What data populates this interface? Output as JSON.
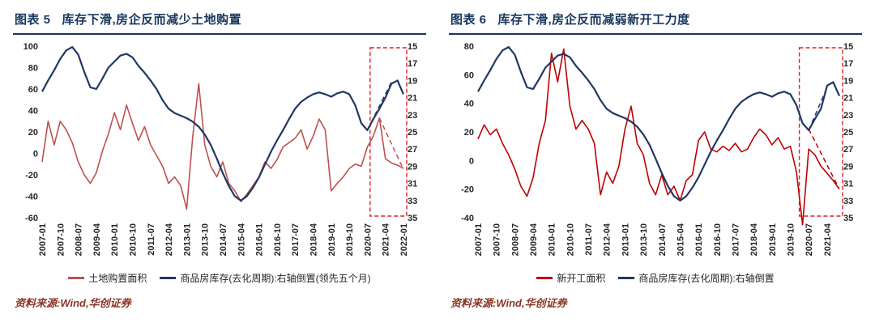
{
  "panels": [
    {
      "title_prefix": "图表 5",
      "title": "库存下滑,房企反而减少土地购置",
      "source": "资料来源:Wind,华创证券"
    },
    {
      "title_prefix": "图表 6",
      "title": "库存下滑,房企反而减弱新开工力度",
      "source": "资料来源:Wind,华创证券"
    }
  ],
  "colors": {
    "title_navy": "#17375e",
    "blue_series": "#1f3864",
    "red_series_muted": "#c0504d",
    "red_series_bright": "#c00000",
    "highlight_red": "#e01f1f",
    "source_maroon": "#8b3626"
  },
  "chart_data": [
    {
      "type": "line",
      "x": [
        "2007-01",
        "2007-04",
        "2007-07",
        "2007-10",
        "2008-01",
        "2008-04",
        "2008-07",
        "2008-10",
        "2009-01",
        "2009-04",
        "2009-07",
        "2009-10",
        "2010-01",
        "2010-04",
        "2010-07",
        "2010-10",
        "2011-01",
        "2011-04",
        "2011-07",
        "2011-10",
        "2012-01",
        "2012-04",
        "2012-07",
        "2012-10",
        "2013-01",
        "2013-04",
        "2013-07",
        "2013-10",
        "2014-01",
        "2014-04",
        "2014-07",
        "2014-10",
        "2015-01",
        "2015-04",
        "2015-07",
        "2015-10",
        "2016-01",
        "2016-04",
        "2016-07",
        "2016-10",
        "2017-01",
        "2017-04",
        "2017-07",
        "2017-10",
        "2018-01",
        "2018-04",
        "2018-07",
        "2018-10",
        "2019-01",
        "2019-04",
        "2019-07",
        "2019-10",
        "2020-01",
        "2020-04",
        "2020-07",
        "2020-10",
        "2021-01",
        "2021-04",
        "2021-07",
        "2021-10",
        "2022-01"
      ],
      "x_tick_every": 3,
      "left_axis": {
        "min": -60,
        "max": 100,
        "ticks": [
          100,
          80,
          60,
          40,
          20,
          0,
          -20,
          -40,
          -60
        ]
      },
      "right_axis": {
        "min": 15,
        "max": 35,
        "ticks": [
          15,
          17,
          19,
          21,
          23,
          25,
          27,
          29,
          31,
          33,
          35
        ],
        "note": "右轴倒置"
      },
      "series": [
        {
          "name": "土地购置面积",
          "axis": "left",
          "color": "#c0504d",
          "values": [
            -8,
            30,
            8,
            30,
            22,
            10,
            -8,
            -20,
            -28,
            -18,
            2,
            18,
            38,
            22,
            45,
            28,
            12,
            25,
            8,
            -2,
            -12,
            -28,
            -22,
            -30,
            -52,
            15,
            65,
            8,
            -12,
            -22,
            -8,
            -28,
            -35,
            -45,
            -38,
            -30,
            -22,
            -8,
            -14,
            -6,
            6,
            10,
            14,
            22,
            4,
            16,
            32,
            22,
            -35,
            -28,
            -22,
            -14,
            -10,
            -12,
            6,
            16,
            33,
            -5,
            -9,
            -11,
            -14
          ]
        },
        {
          "name": "商品房库存(去化周期):右轴倒置(领先五个月)",
          "axis": "right",
          "color": "#1f3864",
          "values": [
            20.3,
            19.0,
            17.8,
            16.5,
            15.5,
            15.1,
            16.0,
            18.0,
            19.8,
            20.0,
            18.8,
            17.5,
            16.8,
            16.1,
            15.9,
            16.3,
            17.3,
            18.1,
            19.0,
            20.0,
            21.3,
            22.3,
            22.8,
            23.1,
            23.4,
            23.8,
            24.4,
            25.3,
            26.5,
            28.1,
            29.8,
            31.3,
            32.5,
            33.0,
            32.5,
            31.5,
            30.3,
            28.8,
            27.3,
            26.0,
            24.8,
            23.5,
            22.3,
            21.5,
            21.0,
            20.6,
            20.4,
            20.6,
            20.9,
            20.5,
            20.3,
            20.6,
            21.9,
            24.0,
            24.8,
            23.5,
            22.3,
            21.0,
            19.4,
            19.0,
            20.6
          ]
        }
      ],
      "annotations": {
        "highlight_box": {
          "x_from": "2020-10",
          "x_to": "2022-01",
          "color": "#e01f1f"
        },
        "dashed_lines": [
          {
            "axis": "right",
            "color": "#1f3864",
            "points": [
              [
                "2020-07",
                24.8
              ],
              [
                "2021-07",
                19.2
              ]
            ]
          },
          {
            "axis": "left",
            "color": "#c0504d",
            "points": [
              [
                "2021-01",
                33
              ],
              [
                "2022-01",
                -15
              ]
            ]
          }
        ]
      }
    },
    {
      "type": "line",
      "x": [
        "2007-01",
        "2007-04",
        "2007-07",
        "2007-10",
        "2008-01",
        "2008-04",
        "2008-07",
        "2008-10",
        "2009-01",
        "2009-04",
        "2009-07",
        "2009-10",
        "2010-01",
        "2010-04",
        "2010-07",
        "2010-10",
        "2011-01",
        "2011-04",
        "2011-07",
        "2011-10",
        "2012-01",
        "2012-04",
        "2012-07",
        "2012-10",
        "2013-01",
        "2013-04",
        "2013-07",
        "2013-10",
        "2014-01",
        "2014-04",
        "2014-07",
        "2014-10",
        "2015-01",
        "2015-04",
        "2015-07",
        "2015-10",
        "2016-01",
        "2016-04",
        "2016-07",
        "2016-10",
        "2017-01",
        "2017-04",
        "2017-07",
        "2017-10",
        "2018-01",
        "2018-04",
        "2018-07",
        "2018-10",
        "2019-01",
        "2019-04",
        "2019-07",
        "2019-10",
        "2020-01",
        "2020-04",
        "2020-07",
        "2020-10",
        "2021-01",
        "2021-04",
        "2021-07",
        "2021-10"
      ],
      "x_tick_every": 3,
      "left_axis": {
        "min": -40,
        "max": 80,
        "ticks": [
          80,
          60,
          40,
          20,
          0,
          -20,
          -40
        ]
      },
      "right_axis": {
        "min": 15,
        "max": 35,
        "ticks": [
          15,
          17,
          19,
          21,
          23,
          25,
          27,
          29,
          31,
          33,
          35
        ],
        "note": "右轴倒置"
      },
      "series": [
        {
          "name": "新开工面积",
          "axis": "left",
          "color": "#c00000",
          "values": [
            15,
            25,
            18,
            22,
            12,
            4,
            -6,
            -18,
            -25,
            -12,
            12,
            28,
            75,
            55,
            78,
            38,
            22,
            28,
            22,
            12,
            -24,
            -8,
            -16,
            -4,
            22,
            38,
            12,
            4,
            -16,
            -24,
            -10,
            -24,
            -18,
            -28,
            -14,
            -10,
            14,
            20,
            8,
            6,
            10,
            7,
            12,
            6,
            8,
            16,
            22,
            18,
            11,
            16,
            8,
            10,
            -8,
            -45,
            8,
            4,
            -4,
            -9,
            -14,
            -20
          ]
        },
        {
          "name": "商品房库存(去化周期):右轴倒置",
          "axis": "right",
          "color": "#1f3864",
          "values": [
            20.3,
            19.0,
            17.8,
            16.5,
            15.5,
            15.1,
            16.0,
            18.0,
            19.8,
            20.0,
            18.8,
            17.5,
            16.8,
            16.1,
            15.9,
            16.3,
            17.3,
            18.1,
            19.0,
            20.0,
            21.3,
            22.3,
            22.8,
            23.1,
            23.4,
            23.8,
            24.4,
            25.3,
            26.5,
            28.1,
            29.8,
            31.3,
            32.5,
            33.0,
            32.5,
            31.5,
            30.3,
            28.8,
            27.3,
            26.0,
            24.8,
            23.5,
            22.3,
            21.5,
            21.0,
            20.6,
            20.4,
            20.6,
            20.9,
            20.5,
            20.3,
            20.6,
            21.9,
            24.0,
            24.8,
            23.5,
            22.3,
            19.6,
            19.2,
            20.8
          ]
        }
      ],
      "annotations": {
        "highlight_box": {
          "x_from": "2020-04",
          "x_to": "2021-10",
          "color": "#e01f1f"
        },
        "dashed_lines": [
          {
            "axis": "right",
            "color": "#1f3864",
            "points": [
              [
                "2020-07",
                24.8
              ],
              [
                "2021-04",
                19.8
              ]
            ]
          },
          {
            "axis": "left",
            "color": "#c00000",
            "points": [
              [
                "2020-07",
                22
              ],
              [
                "2021-10",
                -20
              ]
            ]
          }
        ]
      }
    }
  ]
}
